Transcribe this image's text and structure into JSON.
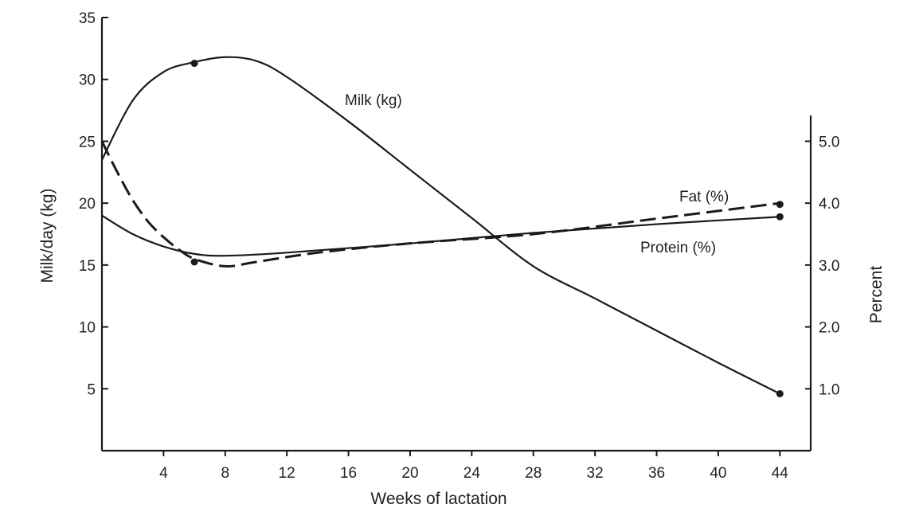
{
  "chart_data": {
    "type": "line",
    "xlabel": "Weeks of lactation",
    "ylabel_left": "Milk/day (kg)",
    "ylabel_right": "Percent",
    "x_ticks": [
      "4",
      "8",
      "12",
      "16",
      "20",
      "24",
      "28",
      "32",
      "36",
      "40",
      "44"
    ],
    "x_tick_values": [
      4,
      8,
      12,
      16,
      20,
      24,
      28,
      32,
      36,
      40,
      44
    ],
    "xlim": [
      0,
      46
    ],
    "y_left_ticks": [
      "5",
      "10",
      "15",
      "20",
      "25",
      "30",
      "35"
    ],
    "y_left_tick_values": [
      5,
      10,
      15,
      20,
      25,
      30,
      35
    ],
    "ylim_left": [
      0,
      35
    ],
    "y_right_ticks": [
      "1.0",
      "2.0",
      "3.0",
      "4.0",
      "5.0"
    ],
    "y_right_tick_values": [
      1.0,
      2.0,
      3.0,
      4.0,
      5.0
    ],
    "ylim_right": [
      0,
      7
    ],
    "series": [
      {
        "name": "Milk (kg)",
        "axis": "left",
        "style": "solid",
        "x": [
          0,
          2,
          4,
          6,
          8,
          10,
          12,
          16,
          20,
          24,
          28,
          32,
          36,
          40,
          44
        ],
        "y": [
          23.5,
          28.3,
          30.6,
          31.4,
          31.8,
          31.5,
          30.2,
          26.6,
          22.7,
          18.8,
          14.9,
          12.3,
          9.7,
          7.1,
          4.6
        ],
        "markers_x": [
          6,
          44
        ],
        "markers_y": [
          31.3,
          4.6
        ]
      },
      {
        "name": "Fat (%)",
        "axis": "right",
        "style": "dashed",
        "x": [
          0,
          1,
          2,
          3,
          4,
          5,
          6,
          8,
          10,
          14,
          20,
          28,
          36,
          44
        ],
        "y": [
          5.0,
          4.5,
          4.05,
          3.7,
          3.45,
          3.25,
          3.1,
          2.98,
          3.05,
          3.2,
          3.35,
          3.5,
          3.75,
          4.0
        ],
        "markers_x": [
          6,
          44
        ],
        "markers_y": [
          3.05,
          3.98
        ]
      },
      {
        "name": "Protein (%)",
        "axis": "right",
        "style": "solid",
        "x": [
          0,
          2,
          4,
          6,
          8,
          12,
          20,
          28,
          36,
          44
        ],
        "y": [
          3.8,
          3.5,
          3.3,
          3.18,
          3.15,
          3.2,
          3.35,
          3.52,
          3.66,
          3.78
        ],
        "markers_x": [
          44
        ],
        "markers_y": [
          3.78
        ]
      }
    ]
  }
}
